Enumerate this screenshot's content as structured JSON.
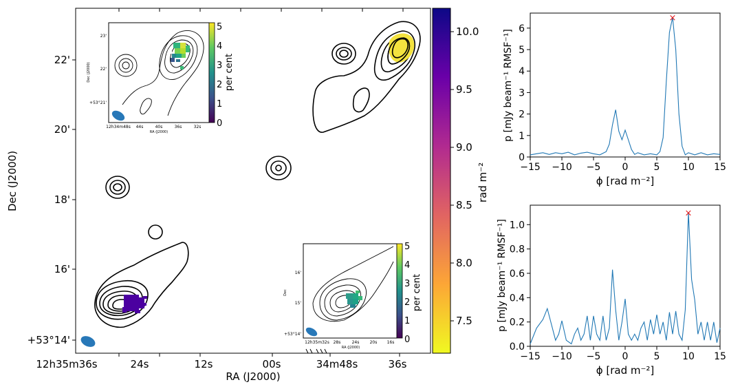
{
  "chart_data": [
    {
      "type": "heatmap",
      "xlabel": "RA (J2000)",
      "ylabel": "Dec (J2000)",
      "x_ticks": [
        "12h35m36s",
        "24s",
        "12s",
        "00s",
        "34m48s",
        "36s"
      ],
      "y_ticks": [
        "+53°14'",
        "16'",
        "18'",
        "20'",
        "22'"
      ],
      "colorbar": {
        "label": "rad m⁻²",
        "ticks": [
          "7.5",
          "8.0",
          "8.5",
          "9.0",
          "9.5",
          "10.0"
        ],
        "range": [
          7.2,
          10.2
        ],
        "colors": [
          "#f0f921",
          "#fca636",
          "#e16462",
          "#b12a90",
          "#6a00a8",
          "#0d0887"
        ]
      },
      "insets": [
        {
          "xlabel": "RA (J2000)",
          "ylabel": "Dec (J2000)",
          "x_ticks": [
            "12h34m48s",
            "44s",
            "40s",
            "36s",
            "32s"
          ],
          "y_ticks": [
            "+53°21'",
            "22'",
            "23'"
          ],
          "colorbar_label": "per cent",
          "colorbar_ticks": [
            "0",
            "1",
            "2",
            "3",
            "4",
            "5"
          ]
        },
        {
          "xlabel": "RA (J2000)",
          "ylabel": "Dec",
          "x_ticks": [
            "12h35m32s",
            "28s",
            "24s",
            "20s",
            "16s"
          ],
          "y_ticks": [
            "+53°14'",
            "15'",
            "16'"
          ],
          "colorbar_label": "per cent",
          "colorbar_ticks": [
            "0",
            "1",
            "2",
            "3",
            "4",
            "5"
          ]
        }
      ]
    },
    {
      "type": "line",
      "xlabel": "ϕ [rad m⁻²]",
      "ylabel": "p [mJy beam⁻¹ RMSF⁻¹]",
      "xlim": [
        -15,
        15
      ],
      "ylim": [
        0,
        6.7
      ],
      "x_ticks": [
        "−15",
        "−10",
        "−5",
        "0",
        "5",
        "10",
        "15"
      ],
      "y_ticks": [
        "0",
        "1",
        "2",
        "3",
        "4",
        "5",
        "6"
      ],
      "x": [
        -15,
        -14,
        -13,
        -12,
        -11,
        -10,
        -9,
        -8,
        -7,
        -6,
        -5,
        -4,
        -3,
        -2.5,
        -2,
        -1.5,
        -1,
        -0.5,
        0,
        0.5,
        1,
        1.5,
        2,
        3,
        4,
        5,
        5.5,
        6,
        6.5,
        7,
        7.5,
        8,
        8.5,
        9,
        9.5,
        10,
        11,
        12,
        13,
        14,
        15
      ],
      "y": [
        0.1,
        0.15,
        0.2,
        0.12,
        0.2,
        0.15,
        0.22,
        0.1,
        0.18,
        0.22,
        0.15,
        0.1,
        0.25,
        0.6,
        1.5,
        2.2,
        1.2,
        0.8,
        1.25,
        0.8,
        0.35,
        0.12,
        0.2,
        0.1,
        0.15,
        0.1,
        0.25,
        0.9,
        3.5,
        5.8,
        6.5,
        5.0,
        2.0,
        0.5,
        0.1,
        0.2,
        0.1,
        0.2,
        0.1,
        0.15,
        0.12
      ],
      "peak": {
        "x": 7.5,
        "y": 6.5
      }
    },
    {
      "type": "line",
      "xlabel": "ϕ [rad m⁻²]",
      "ylabel": "p [mJy beam⁻¹ RMSF⁻¹]",
      "xlim": [
        -15,
        15
      ],
      "ylim": [
        0,
        1.16
      ],
      "x_ticks": [
        "−15",
        "−10",
        "−5",
        "0",
        "5",
        "10",
        "15"
      ],
      "y_ticks": [
        "0.0",
        "0.2",
        "0.4",
        "0.6",
        "0.8",
        "1.0"
      ],
      "x": [
        -15,
        -14,
        -13,
        -12.3,
        -11.5,
        -11,
        -10.5,
        -10,
        -9.3,
        -8.5,
        -8,
        -7.5,
        -7,
        -6.5,
        -6,
        -5.5,
        -5,
        -4.5,
        -4,
        -3.5,
        -3,
        -2.5,
        -2,
        -1.5,
        -1,
        -0.5,
        0,
        0.5,
        1,
        1.5,
        2,
        2.5,
        3,
        3.5,
        4,
        4.5,
        5,
        5.5,
        6,
        6.5,
        7,
        7.5,
        8,
        8.5,
        9,
        9.5,
        10,
        10.5,
        11,
        11.5,
        12,
        12.5,
        13,
        13.5,
        14,
        14.5,
        15
      ],
      "y": [
        0.02,
        0.15,
        0.22,
        0.31,
        0.15,
        0.05,
        0.1,
        0.21,
        0.05,
        0.02,
        0.1,
        0.15,
        0.05,
        0.1,
        0.25,
        0.05,
        0.25,
        0.1,
        0.05,
        0.25,
        0.05,
        0.15,
        0.63,
        0.3,
        0.05,
        0.2,
        0.39,
        0.1,
        0.05,
        0.1,
        0.05,
        0.15,
        0.2,
        0.05,
        0.22,
        0.1,
        0.26,
        0.1,
        0.2,
        0.05,
        0.28,
        0.1,
        0.29,
        0.1,
        0.05,
        0.3,
        1.1,
        0.55,
        0.38,
        0.1,
        0.2,
        0.05,
        0.2,
        0.05,
        0.2,
        0.03,
        0.15
      ],
      "peak": {
        "x": 10,
        "y": 1.1
      }
    }
  ]
}
